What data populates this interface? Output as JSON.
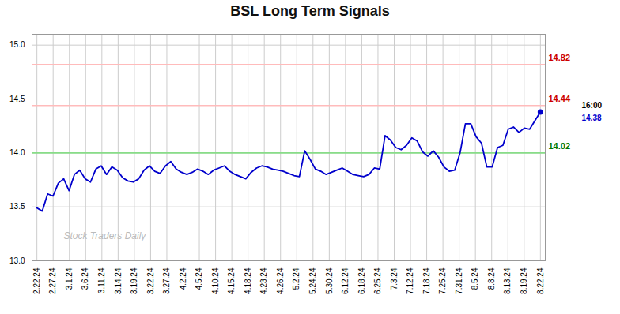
{
  "chart_data": {
    "type": "line",
    "title": "BSL Long Term Signals",
    "color": "#0000cc",
    "values": [
      13.49,
      13.46,
      13.62,
      13.6,
      13.72,
      13.76,
      13.65,
      13.8,
      13.84,
      13.76,
      13.73,
      13.85,
      13.88,
      13.8,
      13.87,
      13.84,
      13.77,
      13.74,
      13.73,
      13.76,
      13.84,
      13.88,
      13.83,
      13.81,
      13.88,
      13.92,
      13.85,
      13.82,
      13.8,
      13.82,
      13.85,
      13.83,
      13.8,
      13.84,
      13.86,
      13.88,
      13.83,
      13.8,
      13.78,
      13.76,
      13.82,
      13.86,
      13.88,
      13.87,
      13.85,
      13.84,
      13.83,
      13.81,
      13.79,
      13.78,
      14.02,
      13.94,
      13.85,
      13.83,
      13.8,
      13.82,
      13.84,
      13.86,
      13.83,
      13.8,
      13.79,
      13.78,
      13.8,
      13.86,
      13.85,
      14.16,
      14.12,
      14.05,
      14.03,
      14.07,
      14.14,
      14.11,
      14.01,
      13.97,
      14.02,
      13.96,
      13.87,
      13.83,
      13.84,
      14.0,
      14.27,
      14.27,
      14.15,
      14.09,
      13.87,
      13.87,
      14.05,
      14.07,
      14.22,
      14.24,
      14.19,
      14.23,
      14.22,
      14.3,
      14.38
    ],
    "xlim": [
      -0.3,
      31.3
    ],
    "xticks": [
      {
        "value": 0,
        "label": "2.22.24"
      },
      {
        "value": 1,
        "label": "2.27.24"
      },
      {
        "value": 2,
        "label": "3.1.24"
      },
      {
        "value": 3,
        "label": "3.6.24"
      },
      {
        "value": 4,
        "label": "3.11.24"
      },
      {
        "value": 5,
        "label": "3.14.24"
      },
      {
        "value": 6,
        "label": "3.19.24"
      },
      {
        "value": 7,
        "label": "3.22.24"
      },
      {
        "value": 8,
        "label": "3.27.24"
      },
      {
        "value": 9,
        "label": "4.2.24"
      },
      {
        "value": 10,
        "label": "4.5.24"
      },
      {
        "value": 11,
        "label": "4.10.24"
      },
      {
        "value": 12,
        "label": "4.15.24"
      },
      {
        "value": 13,
        "label": "4.18.24"
      },
      {
        "value": 14,
        "label": "4.23.24"
      },
      {
        "value": 15,
        "label": "4.26.24"
      },
      {
        "value": 16,
        "label": "5.2.24"
      },
      {
        "value": 17,
        "label": "5.24.24"
      },
      {
        "value": 18,
        "label": "5.30.24"
      },
      {
        "value": 19,
        "label": "6.12.24"
      },
      {
        "value": 20,
        "label": "6.18.24"
      },
      {
        "value": 21,
        "label": "6.25.24"
      },
      {
        "value": 22,
        "label": "7.3.24"
      },
      {
        "value": 23,
        "label": "7.12.24"
      },
      {
        "value": 24,
        "label": "7.18.24"
      },
      {
        "value": 25,
        "label": "7.25.24"
      },
      {
        "value": 26,
        "label": "7.31.24"
      },
      {
        "value": 27,
        "label": "8.5.24"
      },
      {
        "value": 28,
        "label": "8.8.24"
      },
      {
        "value": 29,
        "label": "8.13.24"
      },
      {
        "value": 30,
        "label": "8.19.24"
      },
      {
        "value": 31,
        "label": "8.22.24"
      }
    ],
    "ylim": [
      13.0,
      15.1
    ],
    "yticks": [
      {
        "value": 13.0,
        "label": "13.0"
      },
      13.5,
      {
        "value": 14.0,
        "label": "14.0"
      },
      14.5,
      {
        "value": 15.0,
        "label": "15.0"
      }
    ],
    "grid": true,
    "reference_lines": [
      {
        "value": 14.82,
        "color": "#ffbbbb",
        "label": "14.82",
        "label_color": "#cc0000"
      },
      {
        "value": 14.44,
        "color": "#ffbbbb",
        "label": "14.44",
        "label_color": "#cc0000"
      },
      {
        "value": 14.0,
        "color": "#88dd88",
        "label": "14.02",
        "label_color": "#007700"
      }
    ],
    "last_point": {
      "color": "#0000cc",
      "annotations": [
        {
          "text": "16:00",
          "color": "#000000"
        },
        {
          "text": "14.38",
          "color": "#0000cc"
        }
      ]
    },
    "watermark": {
      "text": "Stock Traders Daily",
      "color": "#bbbbbb"
    }
  }
}
